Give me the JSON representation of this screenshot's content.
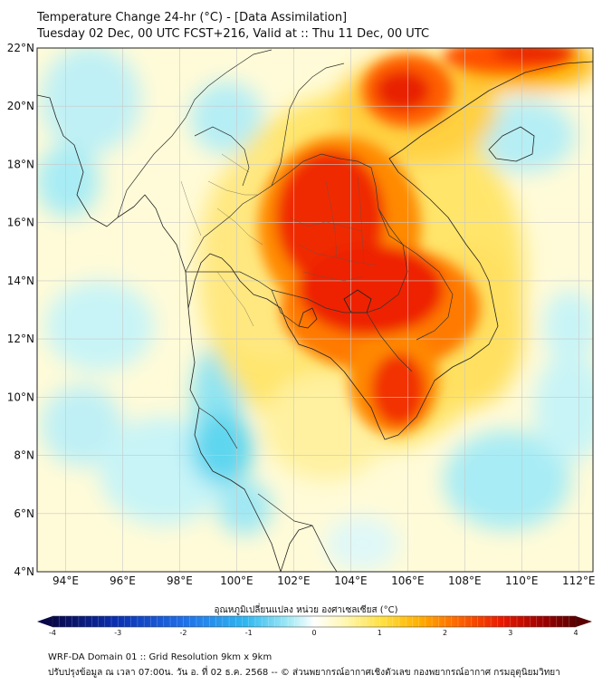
{
  "title": {
    "line1": "Temperature Change 24-hr (°C) - [Data Assimilation]",
    "line2": "Tuesday 02 Dec, 00 UTC FCST+216, Valid at :: Thu 11 Dec, 00 UTC"
  },
  "map": {
    "lat_range": [
      4,
      22
    ],
    "lon_range": [
      93,
      112.5
    ],
    "lat_ticks": [
      "22°N",
      "20°N",
      "18°N",
      "16°N",
      "14°N",
      "12°N",
      "10°N",
      "8°N",
      "6°N",
      "4°N"
    ],
    "lon_ticks": [
      "94°E",
      "96°E",
      "98°E",
      "100°E",
      "102°E",
      "104°E",
      "106°E",
      "108°E",
      "110°E",
      "112°E"
    ],
    "grid": true
  },
  "colorbar": {
    "label": "อุณหภูมิเปลี่ยนแปลง หน่วย องศาเซลเซียส (°C)",
    "ticks": [
      "-4",
      "-3",
      "-2",
      "-1",
      "0",
      "1",
      "2",
      "3",
      "4"
    ],
    "range": [
      -4,
      4
    ],
    "colors": [
      "#08084a",
      "#0b2fb0",
      "#1f6fe8",
      "#2fb8f0",
      "#6fe4f5",
      "#c8f4f7",
      "#ffffff",
      "#fff7b0",
      "#ffe040",
      "#ffb000",
      "#ff6a00",
      "#e81800",
      "#9a0000",
      "#5a0000"
    ]
  },
  "footer": {
    "line1": "WRF-DA Domain 01 :: Grid Resolution 9km x 9km",
    "line2": "ปรับปรุงข้อมูล ณ เวลา 07:00น. วัน อ. ที่ 02 ธ.ค. 2568 -- © ส่วนพยากรณ์อากาศเชิงตัวเลข กองพยากรณ์อากาศ กรมอุตุนิยมวิทยา"
  }
}
